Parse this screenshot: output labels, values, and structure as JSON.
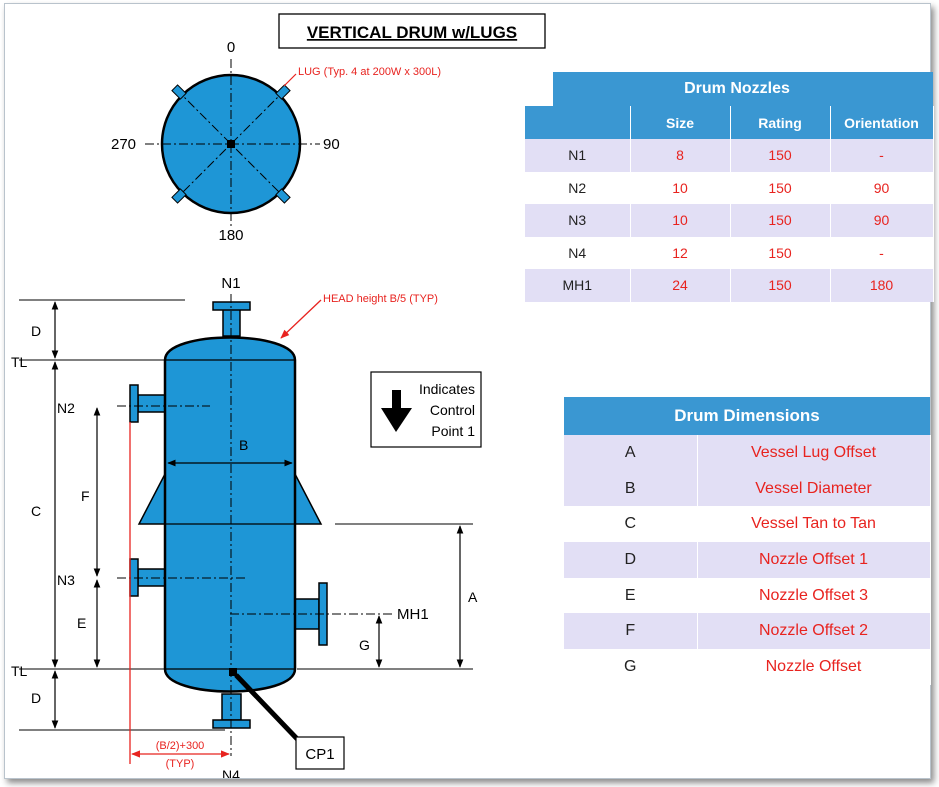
{
  "diagram": {
    "title": "VERTICAL DRUM w/LUGS",
    "plan_labels": {
      "deg0": "0",
      "deg90": "90",
      "deg180": "180",
      "deg270": "270"
    },
    "lug_note": "LUG (Typ. 4 at 200W x 300L)",
    "head_note": "HEAD height B/5 (TYP)",
    "control_point_legend": [
      "Indicates",
      "Control",
      "Point 1"
    ],
    "nozzle_labels": {
      "n1": "N1",
      "n2": "N2",
      "n3": "N3",
      "n4": "N4",
      "mh1": "MH1"
    },
    "dim_labels": {
      "d_top": "D",
      "tl_top": "TL",
      "c": "C",
      "f": "F",
      "e": "E",
      "tl_bottom": "TL",
      "d_bottom": "D",
      "b": "B",
      "a": "A",
      "g": "G"
    },
    "offset_note_1": "(B/2)+300",
    "offset_note_2": "(TYP)",
    "cp1": "CP1"
  },
  "drum_nozzles": {
    "title": "Drum Nozzles",
    "columns": [
      "",
      "Size",
      "Rating",
      "Orientation"
    ],
    "rows": [
      {
        "name": "N1",
        "size": "8",
        "rating": "150",
        "orientation": "-"
      },
      {
        "name": "N2",
        "size": "10",
        "rating": "150",
        "orientation": "90"
      },
      {
        "name": "N3",
        "size": "10",
        "rating": "150",
        "orientation": "90"
      },
      {
        "name": "N4",
        "size": "12",
        "rating": "150",
        "orientation": "-"
      },
      {
        "name": "MH1",
        "size": "24",
        "rating": "150",
        "orientation": "180"
      }
    ]
  },
  "drum_dimensions": {
    "title": "Drum Dimensions",
    "rows": [
      {
        "key": "A",
        "desc": "Vessel Lug Offset"
      },
      {
        "key": "B",
        "desc": "Vessel Diameter"
      },
      {
        "key": "C",
        "desc": "Vessel Tan to Tan"
      },
      {
        "key": "D",
        "desc": "Nozzle Offset 1"
      },
      {
        "key": "E",
        "desc": "Nozzle Offset  3"
      },
      {
        "key": "F",
        "desc": "Nozzle Offset 2"
      },
      {
        "key": "G",
        "desc": "Nozzle Offset"
      }
    ]
  },
  "colors": {
    "vessel_fill": "#1e96d6",
    "header_blue": "#3a97d2",
    "row_lavender": "#e2dff5",
    "red_text": "#e8231f"
  }
}
